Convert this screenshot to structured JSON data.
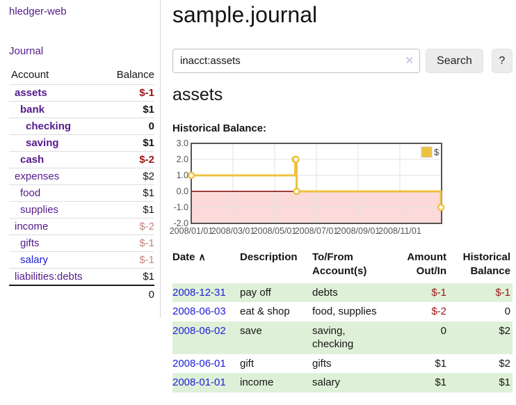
{
  "colors": {
    "link-purple": "#551a8b",
    "link-blue": "#1c1cd8",
    "negative": "#9b1313",
    "negative-faded": "#c5837f",
    "row-green": "#dff0d8",
    "chart-series": "#edc240",
    "chart-frame": "#545454",
    "chart-zero": "#800000",
    "chart-pink": "#fcdada"
  },
  "app": {
    "brand": "hledger-web"
  },
  "sidebar": {
    "journal_link": "Journal",
    "accounts_table": {
      "headers": {
        "account": "Account",
        "balance": "Balance"
      },
      "rows": [
        {
          "label": "assets",
          "level": 1,
          "bold": true,
          "link_color": "purple",
          "balance": "$-1",
          "balance_style": "negative"
        },
        {
          "label": "bank",
          "level": 2,
          "bold": true,
          "link_color": "purple",
          "balance": "$1",
          "balance_style": "normal"
        },
        {
          "label": "checking",
          "level": 3,
          "bold": true,
          "link_color": "purple",
          "balance": "0",
          "balance_style": "normal"
        },
        {
          "label": "saving",
          "level": 3,
          "bold": true,
          "link_color": "purple",
          "balance": "$1",
          "balance_style": "normal"
        },
        {
          "label": "cash",
          "level": 2,
          "bold": true,
          "link_color": "purple",
          "balance": "$-2",
          "balance_style": "negative"
        },
        {
          "label": "expenses",
          "level": 1,
          "bold": false,
          "link_color": "purple",
          "balance": "$2",
          "balance_style": "normal"
        },
        {
          "label": "food",
          "level": 2,
          "bold": false,
          "link_color": "purple",
          "balance": "$1",
          "balance_style": "normal"
        },
        {
          "label": "supplies",
          "level": 2,
          "bold": false,
          "link_color": "purple",
          "balance": "$1",
          "balance_style": "normal"
        },
        {
          "label": "income",
          "level": 1,
          "bold": false,
          "link_color": "purple",
          "balance": "$-2",
          "balance_style": "negative-faded"
        },
        {
          "label": "gifts",
          "level": 2,
          "bold": false,
          "link_color": "purple",
          "balance": "$-1",
          "balance_style": "negative-faded"
        },
        {
          "label": "salary",
          "level": 2,
          "bold": false,
          "link_color": "blue",
          "balance": "$-1",
          "balance_style": "negative-faded"
        },
        {
          "label": "liabilities:debts",
          "level": 1,
          "bold": false,
          "link_color": "purple",
          "balance": "$1",
          "balance_style": "normal"
        }
      ],
      "total": "0"
    }
  },
  "header": {
    "title": "sample.journal"
  },
  "search": {
    "value": "inacct:assets",
    "clear_icon": "✕",
    "button_label": "Search",
    "help_label": "?"
  },
  "account_page": {
    "heading": "assets",
    "chart_label": "Historical Balance:"
  },
  "chart_data": {
    "type": "line",
    "title": "Historical Balance:",
    "step": true,
    "legend": [
      {
        "label": "$",
        "color": "#edc240"
      }
    ],
    "legend_position": "top-right",
    "grid": true,
    "x_ticks": [
      "2008/01/01",
      "2008/03/01",
      "2008/05/01",
      "2008/07/01",
      "2008/09/01",
      "2008/11/01"
    ],
    "y_ticks": [
      "3.0",
      "2.0",
      "1.0",
      "0.0",
      "-1.0",
      "-2.0"
    ],
    "ylim": [
      -2,
      3
    ],
    "x_range": [
      "2008-01-01",
      "2009-01-01"
    ],
    "negative_region_shaded": true,
    "points": [
      {
        "date": "2008-01-01",
        "value": 1
      },
      {
        "date": "2008-06-01",
        "value": 2
      },
      {
        "date": "2008-06-02",
        "value": 2
      },
      {
        "date": "2008-06-03",
        "value": 0
      },
      {
        "date": "2008-12-31",
        "value": -1
      }
    ]
  },
  "register_table": {
    "headers": {
      "date": "Date",
      "date_sort_icon": "∧",
      "description": "Description",
      "tofrom": "To/From Account(s)",
      "amount": "Amount Out/In",
      "balance": "Historical Balance"
    },
    "rows": [
      {
        "date": "2008-12-31",
        "description": "pay off",
        "tofrom": "debts",
        "amount": "$-1",
        "amount_style": "negative",
        "balance": "$-1",
        "balance_style": "negative"
      },
      {
        "date": "2008-06-03",
        "description": "eat & shop",
        "tofrom": "food, supplies",
        "amount": "$-2",
        "amount_style": "negative",
        "balance": "0",
        "balance_style": "normal"
      },
      {
        "date": "2008-06-02",
        "description": "save",
        "tofrom": "saving, checking",
        "amount": "0",
        "amount_style": "normal",
        "balance": "$2",
        "balance_style": "normal"
      },
      {
        "date": "2008-06-01",
        "description": "gift",
        "tofrom": "gifts",
        "amount": "$1",
        "amount_style": "normal",
        "balance": "$2",
        "balance_style": "normal"
      },
      {
        "date": "2008-01-01",
        "description": "income",
        "tofrom": "salary",
        "amount": "$1",
        "amount_style": "normal",
        "balance": "$1",
        "balance_style": "normal"
      }
    ]
  }
}
